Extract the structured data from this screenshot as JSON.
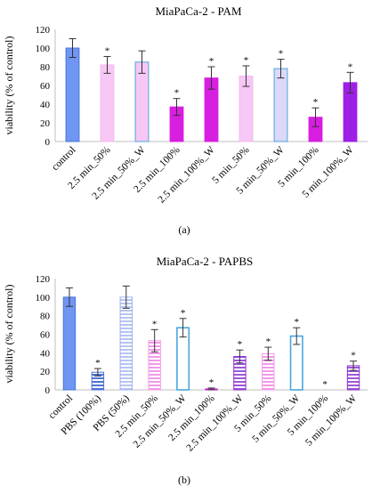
{
  "figure_labels": [
    "(a)",
    "(b)"
  ],
  "chart_data": [
    {
      "type": "bar",
      "title": "MiaPaCa-2 - PAM",
      "xlabel": "",
      "ylabel": "viability (% of control)",
      "ylim": [
        0,
        120
      ],
      "yticks": [
        0,
        20,
        40,
        60,
        80,
        100,
        120
      ],
      "grid": false,
      "legend": "none",
      "categories": [
        "control",
        "2.5 min_50%",
        "2.5 min_50%_W",
        "2.5 min_100%",
        "2.5 min_100%_W",
        "5 min_50%",
        "5 min_50%_W",
        "5 min_100%",
        "5 min_100%_W"
      ],
      "values": [
        100,
        82,
        85,
        37,
        68,
        70,
        78,
        26,
        63
      ],
      "errors": [
        10,
        9,
        12,
        9,
        12,
        11,
        10,
        10,
        11
      ],
      "significant": [
        false,
        true,
        false,
        true,
        true,
        true,
        true,
        true,
        true
      ],
      "significance_marker": "*",
      "colors": [
        "#6f96f2",
        "#f7c8f5",
        "#f7c8f5",
        "#d81ee0",
        "#d81ee0",
        "#f7c8f5",
        "#dcd8f8",
        "#d81ee0",
        "#9e1fe6"
      ],
      "edge_colors": [
        "#4a74da",
        "#f3b7f1",
        "#4aa7dc",
        "#d81ee0",
        "#d81ee0",
        "#f3b7f1",
        "#4aa7dc",
        "#d81ee0",
        "#9e1fe6"
      ],
      "patterns": [
        "solid",
        "solid",
        "solid",
        "solid",
        "solid",
        "solid",
        "solid",
        "solid",
        "solid"
      ]
    },
    {
      "type": "bar",
      "title": "MiaPaCa-2 - PAPBS",
      "xlabel": "",
      "ylabel": "viability (% of control)",
      "ylim": [
        0,
        120
      ],
      "yticks": [
        0,
        20,
        40,
        60,
        80,
        100,
        120
      ],
      "grid": false,
      "legend": "none",
      "categories": [
        "control",
        "PBS (100%)",
        "PBS (50%)",
        "2.5 min_50%",
        "2.5 min_50%_W",
        "2.5 min_100%",
        "2.5 min_100%_W",
        "5 min_50%",
        "5 min_50%_W",
        "5 min_100%",
        "5 min_100%_W"
      ],
      "values": [
        100,
        19,
        100,
        53,
        67,
        1,
        36,
        39,
        58,
        0,
        26
      ],
      "errors": [
        10,
        4,
        12,
        12,
        10,
        1,
        7,
        7,
        9,
        0,
        5
      ],
      "significant": [
        false,
        true,
        false,
        true,
        true,
        true,
        true,
        true,
        true,
        true,
        true
      ],
      "significance_marker": "*",
      "colors": [
        "#6f96f2",
        "#4e74d6",
        "#b7c4f3",
        "#f29ae8",
        "#4aa7dc",
        "#c21dd0",
        "#9e57d6",
        "#f29ae8",
        "#4aa7dc",
        "#c21dd0",
        "#9e57d6"
      ],
      "edge_colors": [
        "#4a74da",
        "#4e74d6",
        "#9fb1ee",
        "#f29ae8",
        "#4aa7dc",
        "#c21dd0",
        "#8a2fd2",
        "#f29ae8",
        "#4aa7dc",
        "#c21dd0",
        "#8a2fd2"
      ],
      "patterns": [
        "solid",
        "hstripe",
        "hstripe",
        "hstripe",
        "outline",
        "hstripe",
        "hstripe",
        "hstripe",
        "outline",
        "hstripe",
        "hstripe"
      ]
    }
  ]
}
